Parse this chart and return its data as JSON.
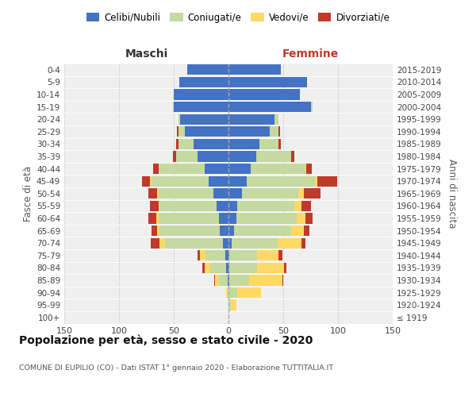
{
  "age_groups": [
    "100+",
    "95-99",
    "90-94",
    "85-89",
    "80-84",
    "75-79",
    "70-74",
    "65-69",
    "60-64",
    "55-59",
    "50-54",
    "45-49",
    "40-44",
    "35-39",
    "30-34",
    "25-29",
    "20-24",
    "15-19",
    "10-14",
    "5-9",
    "0-4"
  ],
  "birth_years": [
    "≤ 1919",
    "1920-1924",
    "1925-1929",
    "1930-1934",
    "1935-1939",
    "1940-1944",
    "1945-1949",
    "1950-1954",
    "1955-1959",
    "1960-1964",
    "1965-1969",
    "1970-1974",
    "1975-1979",
    "1980-1984",
    "1985-1989",
    "1990-1994",
    "1995-1999",
    "2000-2004",
    "2005-2009",
    "2010-2014",
    "2015-2019"
  ],
  "colors": {
    "celibi": "#4472c4",
    "coniugati": "#c5d9a0",
    "vedovi": "#ffd966",
    "divorziati": "#c0392b"
  },
  "males": {
    "celibi": [
      0,
      0,
      0,
      1,
      2,
      3,
      5,
      8,
      9,
      11,
      14,
      18,
      22,
      28,
      32,
      40,
      44,
      50,
      50,
      45,
      38
    ],
    "coniugati": [
      0,
      0,
      1,
      8,
      15,
      18,
      53,
      55,
      55,
      52,
      50,
      52,
      42,
      20,
      14,
      6,
      2,
      1,
      0,
      0,
      0
    ],
    "vedovi": [
      0,
      0,
      1,
      3,
      5,
      5,
      5,
      2,
      2,
      1,
      1,
      2,
      0,
      0,
      0,
      0,
      0,
      0,
      0,
      0,
      0
    ],
    "divorziati": [
      0,
      0,
      0,
      1,
      2,
      2,
      8,
      5,
      7,
      8,
      8,
      7,
      5,
      3,
      2,
      1,
      0,
      0,
      0,
      0,
      0
    ]
  },
  "females": {
    "celibi": [
      0,
      0,
      0,
      1,
      1,
      1,
      3,
      5,
      7,
      8,
      12,
      17,
      20,
      25,
      28,
      38,
      42,
      75,
      65,
      72,
      48
    ],
    "coniugati": [
      0,
      2,
      8,
      18,
      25,
      25,
      42,
      52,
      55,
      52,
      52,
      62,
      50,
      32,
      18,
      8,
      4,
      2,
      0,
      0,
      0
    ],
    "vedovi": [
      0,
      5,
      22,
      30,
      25,
      20,
      22,
      12,
      8,
      7,
      5,
      2,
      1,
      0,
      0,
      0,
      0,
      0,
      0,
      0,
      0
    ],
    "divorziati": [
      0,
      0,
      0,
      1,
      2,
      3,
      3,
      5,
      7,
      8,
      15,
      18,
      5,
      3,
      2,
      1,
      0,
      0,
      0,
      0,
      0
    ]
  },
  "title": "Popolazione per età, sesso e stato civile - 2020",
  "subtitle": "COMUNE DI EUPILIO (CO) - Dati ISTAT 1° gennaio 2020 - Elaborazione TUTTITALIA.IT",
  "xlabel_left": "Maschi",
  "xlabel_right": "Femmine",
  "ylabel_left": "Fasce di età",
  "ylabel_right": "Anni di nascita",
  "xlim": 150,
  "background_color": "#efefef",
  "grid_color": "#cccccc",
  "legend_labels": [
    "Celibi/Nubili",
    "Coniugati/e",
    "Vedovi/e",
    "Divorziati/e"
  ]
}
